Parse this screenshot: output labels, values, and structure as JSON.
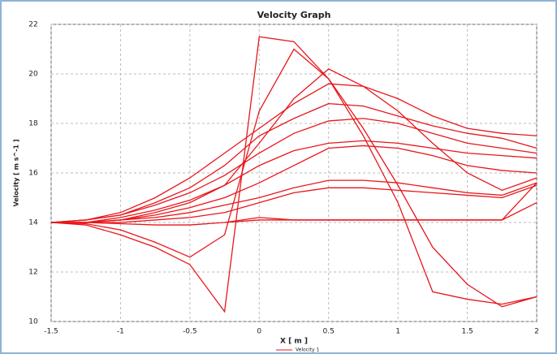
{
  "chart_data": {
    "type": "line",
    "title": "Velocity Graph",
    "x_label": "X [ m ]",
    "y_label": "Velocity [ m s^-1 ]",
    "legend": "Velocity 1",
    "x": [
      -1.5,
      -1.25,
      -1,
      -0.75,
      -0.5,
      -0.25,
      0,
      0.25,
      0.5,
      0.75,
      1,
      1.25,
      1.5,
      1.75,
      2
    ],
    "color": "#e8161b",
    "series": [
      {
        "values": [
          14,
          13.9,
          13.5,
          13,
          12.3,
          10.4,
          21.5,
          21.3,
          19.8,
          17.5,
          14.8,
          11.2,
          10.9,
          10.7,
          11.0
        ]
      },
      {
        "values": [
          14,
          13.95,
          13.7,
          13.2,
          12.6,
          13.5,
          18.5,
          21.0,
          19.8,
          17.8,
          15.5,
          13,
          11.5,
          10.6,
          11.0
        ]
      },
      {
        "values": [
          14,
          14,
          14.1,
          14.4,
          14.8,
          15.5,
          17.2,
          19,
          20.2,
          19.5,
          18.5,
          17.2,
          16.0,
          15.3,
          15.8
        ]
      },
      {
        "values": [
          14,
          14.1,
          14.4,
          15,
          15.8,
          16.8,
          17.8,
          18.8,
          19.6,
          19.5,
          19,
          18.3,
          17.8,
          17.6,
          17.5
        ]
      },
      {
        "values": [
          14,
          14.1,
          14.3,
          14.8,
          15.4,
          16.3,
          17.5,
          18.2,
          18.8,
          18.7,
          18.3,
          17.9,
          17.6,
          17.4,
          17.0
        ]
      },
      {
        "values": [
          14,
          14.1,
          14.3,
          14.7,
          15.2,
          15.9,
          16.8,
          17.6,
          18.1,
          18.2,
          18.0,
          17.6,
          17.2,
          17.0,
          16.8
        ]
      },
      {
        "values": [
          14,
          14,
          14.2,
          14.5,
          14.9,
          15.5,
          16.3,
          16.9,
          17.2,
          17.3,
          17.2,
          17.0,
          16.8,
          16.7,
          16.6
        ]
      },
      {
        "values": [
          14,
          14,
          14.1,
          14.3,
          14.6,
          15.0,
          15.6,
          16.3,
          17.0,
          17.1,
          17.0,
          16.7,
          16.3,
          16.1,
          16.0
        ]
      },
      {
        "values": [
          14,
          14,
          14.1,
          14.2,
          14.4,
          14.7,
          15.0,
          15.4,
          15.7,
          15.7,
          15.6,
          15.4,
          15.2,
          15.1,
          15.6
        ]
      },
      {
        "values": [
          14,
          14,
          14,
          14.1,
          14.2,
          14.4,
          14.8,
          15.2,
          15.4,
          15.4,
          15.3,
          15.2,
          15.1,
          15.0,
          15.5
        ]
      },
      {
        "values": [
          null,
          null,
          null,
          null,
          null,
          14,
          14.1,
          14.1,
          14.1,
          14.1,
          14.1,
          14.1,
          14.1,
          14.1,
          15.6
        ]
      },
      {
        "values": [
          14,
          14,
          13.95,
          13.9,
          13.9,
          14.0,
          14.2,
          14.1,
          14.1,
          14.1,
          14.1,
          14.1,
          14.1,
          14.1,
          14.8
        ]
      }
    ],
    "xlim": [
      -1.5,
      2
    ],
    "xticks": [
      -1.5,
      -1,
      -0.5,
      0,
      0.5,
      1,
      1.5,
      2
    ],
    "ylim": [
      10,
      22
    ],
    "yticks": [
      10,
      12,
      14,
      16,
      18,
      20,
      22
    ],
    "grid": true
  }
}
